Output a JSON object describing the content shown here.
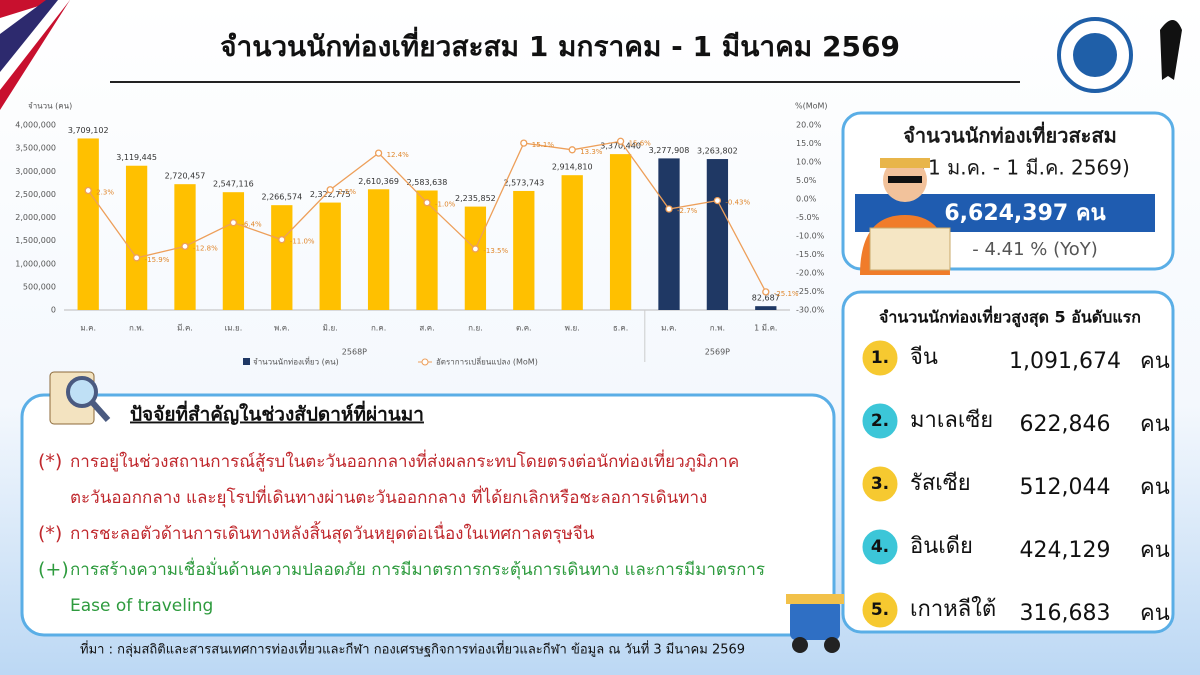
{
  "header": {
    "title": "จำนวนนักท่องเที่ยวสะสม 1 มกราคม - 1 มีนาคม 2569"
  },
  "chart_data": {
    "type": "bar-line",
    "y_label": "จำนวน (คน)",
    "y2_label": "%(MoM)",
    "categories": [
      "ม.ค.",
      "ก.พ.",
      "มี.ค.",
      "เม.ย.",
      "พ.ค.",
      "มิ.ย.",
      "ก.ค.",
      "ส.ค.",
      "ก.ย.",
      "ต.ค.",
      "พ.ย.",
      "ธ.ค.",
      "ม.ค.",
      "ก.พ.",
      "1 มี.ค."
    ],
    "group_labels": [
      "2568P",
      "2569P"
    ],
    "series": [
      {
        "name": "จำนวนนักท่องเที่ยว (คน)",
        "type": "bar",
        "color": "#1f3864",
        "colors": [
          "#ffc000",
          "#ffc000",
          "#ffc000",
          "#ffc000",
          "#ffc000",
          "#ffc000",
          "#ffc000",
          "#ffc000",
          "#ffc000",
          "#ffc000",
          "#ffc000",
          "#ffc000",
          "#1f3864",
          "#1f3864",
          "#1f3864"
        ],
        "values": [
          3709102,
          3119445,
          2720457,
          2547116,
          2266574,
          2322775,
          2610369,
          2583638,
          2235852,
          2573743,
          2914810,
          3370440,
          3277908,
          3263802,
          82687
        ],
        "value_labels": [
          "3,709,102",
          "3,119,445",
          "2,720,457",
          "2,547,116",
          "2,266,574",
          "2,322,775",
          "2,610,369",
          "2,583,638",
          "2,235,852",
          "2,573,743",
          "2,914,810",
          "3,370,440",
          "3,277,908",
          "3,263,802",
          "82,687"
        ]
      },
      {
        "name": "อัตราการเปลี่ยนแปลง (MoM)",
        "type": "line",
        "axis": "y2",
        "color": "#ed9f5a",
        "values": [
          2.3,
          -15.9,
          -12.8,
          -6.4,
          -11.0,
          2.5,
          12.4,
          -1.0,
          -13.5,
          15.1,
          13.3,
          15.6,
          -2.7,
          -0.43,
          -25.1
        ],
        "value_labels": [
          "2.3%",
          "-15.9%",
          "-12.8%",
          "-6.4%",
          "-11.0%",
          "2.5%",
          "12.4%",
          "-1.0%",
          "-13.5%",
          "15.1%",
          "13.3%",
          "15.6%",
          "-2.7%",
          "-0.43%",
          "-25.1%"
        ]
      }
    ],
    "ylim": [
      0,
      4000000
    ],
    "yticks": [
      0,
      {
        "value": 500000,
        "label": "500,000"
      },
      {
        "value": 1000000,
        "label": "1,000,000"
      },
      {
        "value": 1500000,
        "label": "1,500,000"
      },
      {
        "value": 2000000,
        "label": "2,000,000"
      },
      {
        "value": 2500000,
        "label": "2,500,000"
      },
      {
        "value": 3000000,
        "label": "3,000,000"
      },
      {
        "value": 3500000,
        "label": "3,500,000"
      },
      {
        "value": 4000000,
        "label": "4,000,000"
      }
    ],
    "y2lim": [
      -30,
      20
    ],
    "y2ticks": [
      {
        "value": -30,
        "label": "-30.0%"
      },
      {
        "value": -25,
        "label": "-25.0%"
      },
      {
        "value": -20,
        "label": "-20.0%"
      },
      {
        "value": -15,
        "label": "-15.0%"
      },
      {
        "value": -10,
        "label": "-10.0%"
      },
      {
        "value": -5,
        "label": "-5.0%"
      },
      {
        "value": 0,
        "label": "0.0%"
      },
      {
        "value": 5,
        "label": "5.0%"
      },
      {
        "value": 10,
        "label": "10.0%"
      },
      {
        "value": 15,
        "label": "15.0%"
      },
      {
        "value": 20,
        "label": "20.0%"
      }
    ],
    "grid": false
  },
  "summary": {
    "heading": "จำนวนนักท่องเที่ยวสะสม",
    "period": "(1 ม.ค. - 1 มี.ค. 2569)",
    "total": "6,624,397 คน",
    "yoy": "- 4.41 % (YoY)"
  },
  "top5": {
    "heading": "จำนวนนักท่องเที่ยวสูงสุด 5 อันดับแรก",
    "rows": [
      {
        "rank": "1.",
        "country": "จีน",
        "value": "1,091,674",
        "unit": "คน"
      },
      {
        "rank": "2.",
        "country": "มาเลเซีย",
        "value": "622,846",
        "unit": "คน"
      },
      {
        "rank": "3.",
        "country": "รัสเซีย",
        "value": "512,044",
        "unit": "คน"
      },
      {
        "rank": "4.",
        "country": "อินเดีย",
        "value": "424,129",
        "unit": "คน"
      },
      {
        "rank": "5.",
        "country": "เกาหลีใต้",
        "value": "316,683",
        "unit": "คน"
      }
    ]
  },
  "factors": {
    "heading": "ปัจจัยที่สำคัญในช่วงสัปดาห์ที่ผ่านมา",
    "items": [
      {
        "marker": "(*)",
        "color": "#c0282d",
        "lines": [
          "การอยู่ในช่วงสถานการณ์สู้รบในตะวันออกกลางที่ส่งผลกระทบโดยตรงต่อนักท่องเที่ยวภูมิภาค",
          "ตะวันออกกลาง และยุโรปที่เดินทางผ่านตะวันออกกลาง ที่ได้ยกเลิกหรือชะลอการเดินทาง"
        ]
      },
      {
        "marker": "(*)",
        "color": "#c0282d",
        "lines": [
          "การชะลอตัวด้านการเดินทางหลังสิ้นสุดวันหยุดต่อเนื่องในเทศกาลตรุษจีน"
        ]
      },
      {
        "marker": "(+)",
        "color": "#2e9b3e",
        "lines": [
          "การสร้างความเชื่อมั่นด้านความปลอดภัย การมีมาตรการกระตุ้นการเดินทาง และการมีมาตรการ",
          "Ease of traveling"
        ]
      }
    ]
  },
  "source": "ที่มา : กลุ่มสถิติและสารสนเทศการท่องเที่ยวและกีฬา กองเศรษฐกิจการท่องเที่ยวและกีฬา ข้อมูล ณ วันที่ 3 มีนาคม 2569"
}
